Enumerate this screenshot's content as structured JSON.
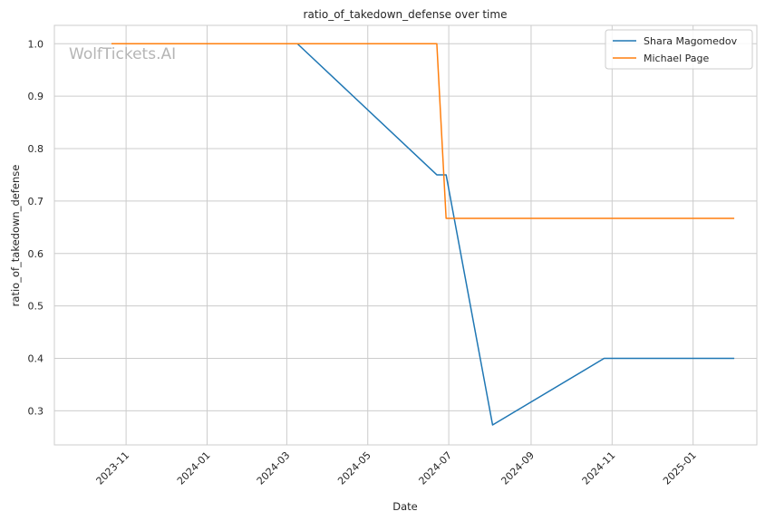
{
  "chart_data": {
    "type": "line",
    "title": "ratio_of_takedown_defense over time",
    "xlabel": "Date",
    "ylabel": "ratio_of_takedown_defense",
    "watermark": "WolfTickets.AI",
    "x_axis": "date",
    "xlim": [
      "2023-09-08",
      "2025-02-18"
    ],
    "ylim": [
      0.235,
      1.035
    ],
    "x_ticks": [
      "2023-11",
      "2024-01",
      "2024-03",
      "2024-05",
      "2024-07",
      "2024-09",
      "2024-11",
      "2025-01"
    ],
    "y_ticks": [
      0.3,
      0.4,
      0.5,
      0.6,
      0.7,
      0.8,
      0.9,
      1.0
    ],
    "grid": true,
    "legend_position": "top-right",
    "series": [
      {
        "name": "Shara Magomedov",
        "color": "#1f77b4",
        "points": [
          {
            "x": "2023-10-21",
            "y": 1.0
          },
          {
            "x": "2024-03-09",
            "y": 1.0
          },
          {
            "x": "2024-06-22",
            "y": 0.75
          },
          {
            "x": "2024-06-29",
            "y": 0.75
          },
          {
            "x": "2024-08-03",
            "y": 0.273
          },
          {
            "x": "2024-10-26",
            "y": 0.4
          },
          {
            "x": "2025-02-01",
            "y": 0.4
          }
        ]
      },
      {
        "name": "Michael Page",
        "color": "#ff7f0e",
        "points": [
          {
            "x": "2023-10-21",
            "y": 1.0
          },
          {
            "x": "2024-06-22",
            "y": 1.0
          },
          {
            "x": "2024-06-29",
            "y": 0.667
          },
          {
            "x": "2025-02-01",
            "y": 0.667
          }
        ]
      }
    ]
  }
}
